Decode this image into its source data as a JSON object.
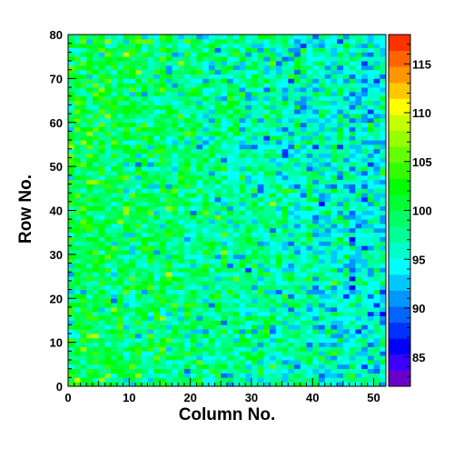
{
  "chart_data": {
    "type": "heatmap",
    "title": "",
    "xlabel": "Column No.",
    "ylabel": "Row No.",
    "xlim": [
      0,
      52
    ],
    "ylim": [
      0,
      80
    ],
    "x_ticks": [
      0,
      10,
      20,
      30,
      40,
      50
    ],
    "y_ticks": [
      0,
      10,
      20,
      30,
      40,
      50,
      60,
      70,
      80
    ],
    "n_columns": 52,
    "n_rows": 80,
    "z_range": [
      82,
      118
    ],
    "colorbar_ticks": [
      85,
      90,
      95,
      100,
      105,
      110,
      115
    ],
    "palette": [
      "#6a00c8",
      "#3c00ff",
      "#0000ff",
      "#0032ff",
      "#0064ff",
      "#0096ff",
      "#00c8ff",
      "#00ffff",
      "#00ffc8",
      "#00ff96",
      "#00ff64",
      "#00ff32",
      "#00ff00",
      "#32ff00",
      "#64ff00",
      "#96ff00",
      "#c8ff00",
      "#ffff00",
      "#ffc800",
      "#ff9600",
      "#ff6400",
      "#ff3200"
    ],
    "grid": false,
    "legend": "colorbar-right",
    "description_of_values": "Per-cell counts approximately 97 ± 5; higher (green/yellow) on the left columns, lower (cyan/blue) on the right columns."
  }
}
